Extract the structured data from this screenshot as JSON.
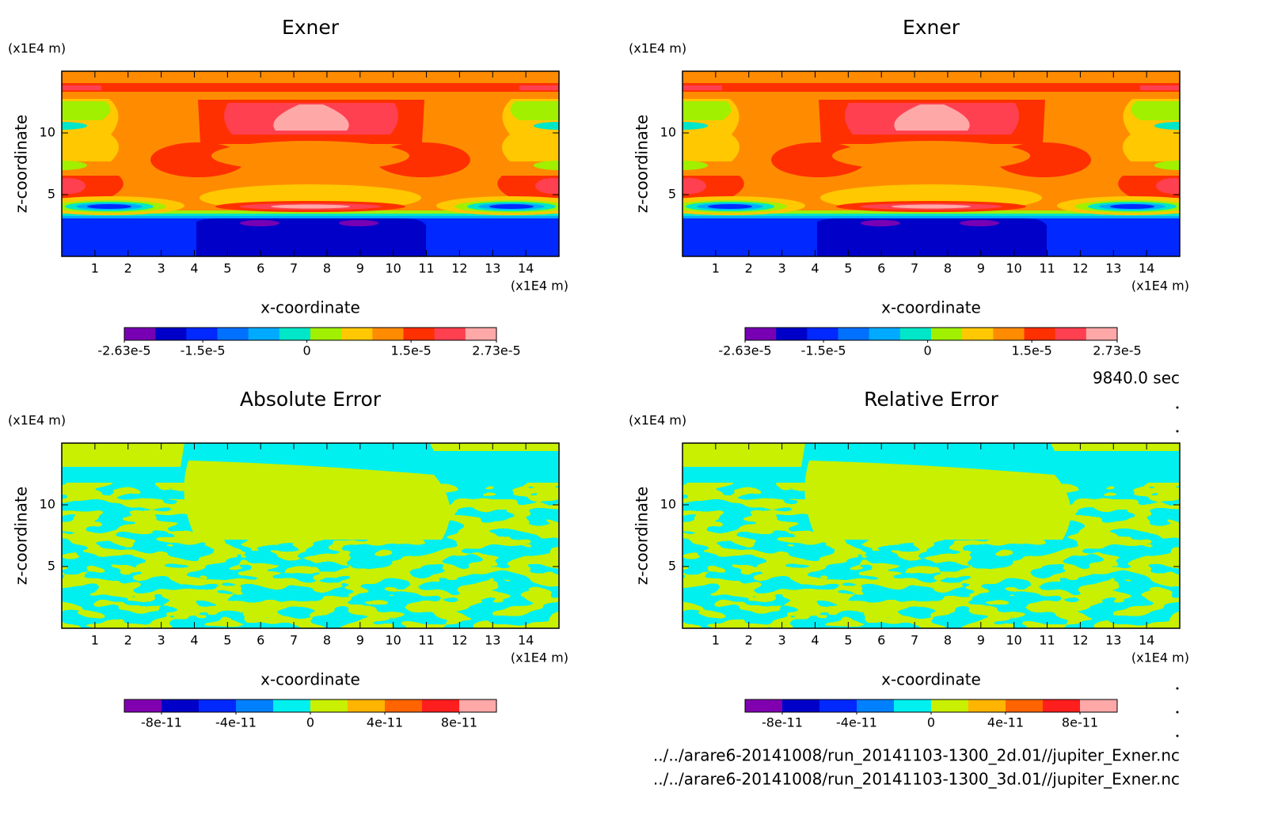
{
  "chart_data": [
    {
      "type": "contour",
      "title": "Exner",
      "xlabel": "x-coordinate",
      "ylabel": "z-coordinate",
      "x_unit": "(x1E4 m)",
      "y_unit": "(x1E4 m)",
      "xlim": [
        0,
        15
      ],
      "ylim": [
        0,
        15
      ],
      "xticks": [
        1,
        2,
        3,
        4,
        5,
        6,
        7,
        8,
        9,
        10,
        11,
        12,
        13,
        14
      ],
      "yticks": [
        5,
        10
      ],
      "colorbar": {
        "colors": [
          "#7800b4",
          "#0000c8",
          "#0028ff",
          "#0070ff",
          "#00aaff",
          "#00e6c8",
          "#a0f000",
          "#ffc800",
          "#ff8c00",
          "#ff3000",
          "#ff4050",
          "#ffa8a8"
        ],
        "clim": [
          -2.63e-05,
          2.73e-05
        ],
        "ticks": [
          {
            "value": -2.63e-05,
            "label": "-2.63e-5"
          },
          {
            "value": -1.5e-05,
            "label": "-1.5e-5"
          },
          0,
          {
            "value": 1.5e-05,
            "label": "1.5e-5"
          },
          {
            "value": 2.73e-05,
            "label": "2.73e-5"
          }
        ]
      }
    },
    {
      "type": "contour",
      "title": "Exner",
      "xlabel": "x-coordinate",
      "ylabel": "z-coordinate",
      "x_unit": "(x1E4 m)",
      "y_unit": "(x1E4 m)",
      "xlim": [
        0,
        15
      ],
      "ylim": [
        0,
        15
      ],
      "xticks": [
        1,
        2,
        3,
        4,
        5,
        6,
        7,
        8,
        9,
        10,
        11,
        12,
        13,
        14
      ],
      "yticks": [
        5,
        10
      ],
      "colorbar": {
        "colors": [
          "#7800b4",
          "#0000c8",
          "#0028ff",
          "#0070ff",
          "#00aaff",
          "#00e6c8",
          "#a0f000",
          "#ffc800",
          "#ff8c00",
          "#ff3000",
          "#ff4050",
          "#ffa8a8"
        ],
        "clim": [
          -2.63e-05,
          2.73e-05
        ],
        "ticks": [
          {
            "value": -2.63e-05,
            "label": "-2.63e-5"
          },
          {
            "value": -1.5e-05,
            "label": "-1.5e-5"
          },
          0,
          {
            "value": 1.5e-05,
            "label": "1.5e-5"
          },
          {
            "value": 2.73e-05,
            "label": "2.73e-5"
          }
        ]
      }
    },
    {
      "type": "contour",
      "title": "Absolute Error",
      "xlabel": "x-coordinate",
      "ylabel": "z-coordinate",
      "x_unit": "(x1E4 m)",
      "y_unit": "(x1E4 m)",
      "xlim": [
        0,
        15
      ],
      "ylim": [
        0,
        15
      ],
      "xticks": [
        1,
        2,
        3,
        4,
        5,
        6,
        7,
        8,
        9,
        10,
        11,
        12,
        13,
        14
      ],
      "yticks": [
        5,
        10
      ],
      "colorbar": {
        "colors": [
          "#8000b0",
          "#0000c8",
          "#0028ff",
          "#0080ff",
          "#00f0f0",
          "#c8f000",
          "#ffb400",
          "#ff6400",
          "#ff1e1e",
          "#ffa8a8"
        ],
        "clim": [
          -1e-10,
          1e-10
        ],
        "ticks": [
          {
            "value": -8e-11,
            "label": "-8e-11"
          },
          {
            "value": -4e-11,
            "label": "-4e-11"
          },
          0,
          {
            "value": 4e-11,
            "label": "4e-11"
          },
          {
            "value": 8e-11,
            "label": "8e-11"
          }
        ]
      }
    },
    {
      "type": "contour",
      "title": "Relative Error",
      "xlabel": "x-coordinate",
      "ylabel": "z-coordinate",
      "x_unit": "(x1E4 m)",
      "y_unit": "(x1E4 m)",
      "xlim": [
        0,
        15
      ],
      "ylim": [
        0,
        15
      ],
      "xticks": [
        1,
        2,
        3,
        4,
        5,
        6,
        7,
        8,
        9,
        10,
        11,
        12,
        13,
        14
      ],
      "yticks": [
        5,
        10
      ],
      "colorbar": {
        "colors": [
          "#8000b0",
          "#0000c8",
          "#0028ff",
          "#0080ff",
          "#00f0f0",
          "#c8f000",
          "#ffb400",
          "#ff6400",
          "#ff1e1e",
          "#ffa8a8"
        ],
        "clim": [
          -1e-10,
          1e-10
        ],
        "ticks": [
          {
            "value": -8e-11,
            "label": "-8e-11"
          },
          {
            "value": -4e-11,
            "label": "-4e-11"
          },
          0,
          {
            "value": 4e-11,
            "label": "4e-11"
          },
          {
            "value": 8e-11,
            "label": "8e-11"
          }
        ]
      }
    }
  ],
  "footer": {
    "time": "9840.0 sec",
    "files": [
      "../../arare6-20141008/run_20141103-1300_2d.01//jupiter_Exner.nc",
      "../../arare6-20141008/run_20141103-1300_3d.01//jupiter_Exner.nc"
    ]
  }
}
